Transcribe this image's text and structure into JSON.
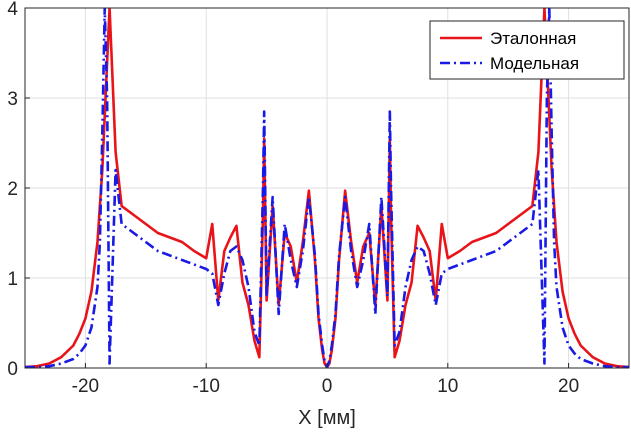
{
  "chart_data": {
    "type": "line",
    "title": "",
    "xlabel": "X [мм]",
    "ylabel": "",
    "xlim": [
      -25,
      25
    ],
    "ylim": [
      0,
      4
    ],
    "xticks": [
      -20,
      -10,
      0,
      10,
      20
    ],
    "xtick_labels": [
      "-20",
      "-10",
      "0",
      "10",
      "20"
    ],
    "yticks": [
      0,
      1,
      2,
      3,
      4
    ],
    "ytick_labels": [
      "0",
      "1",
      "2",
      "3",
      "4"
    ],
    "grid": true,
    "legend_position": "top-right",
    "series": [
      {
        "name": "Эталонная",
        "color": "#e8141a",
        "style": "solid",
        "x": [
          -25,
          -24,
          -23,
          -22,
          -21,
          -20.5,
          -20,
          -19.5,
          -19,
          -18.6,
          -18.2,
          -18,
          -17.5,
          -17,
          -16,
          -15,
          -14,
          -13,
          -12,
          -11,
          -10,
          -9.5,
          -9,
          -8.5,
          -8,
          -7.5,
          -7,
          -6.5,
          -6,
          -5.6,
          -5.3,
          -5.2,
          -5,
          -4.5,
          -4,
          -3.5,
          -3,
          -2.5,
          -2,
          -1.5,
          -1,
          -0.7,
          -0.4,
          -0.2,
          0,
          0.2,
          0.4,
          0.7,
          1,
          1.5,
          2,
          2.5,
          3,
          3.5,
          4,
          4.5,
          5,
          5.2,
          5.3,
          5.6,
          6,
          6.5,
          7,
          7.5,
          8,
          8.5,
          9,
          9.5,
          10,
          11,
          12,
          13,
          14,
          15,
          16,
          17,
          17.5,
          18,
          18.2,
          18.6,
          19,
          19.5,
          20,
          20.5,
          21,
          22,
          23,
          24,
          25
        ],
        "y": [
          0.01,
          0.02,
          0.05,
          0.12,
          0.25,
          0.38,
          0.55,
          0.85,
          1.4,
          2.2,
          3.4,
          4.0,
          2.4,
          1.8,
          1.7,
          1.6,
          1.5,
          1.45,
          1.4,
          1.3,
          1.22,
          1.6,
          0.75,
          1.3,
          1.45,
          1.58,
          0.95,
          0.7,
          0.3,
          0.12,
          1.7,
          2.55,
          0.75,
          1.8,
          0.7,
          1.5,
          1.35,
          0.95,
          1.4,
          1.97,
          1.2,
          0.55,
          0.2,
          0.05,
          0.01,
          0.05,
          0.2,
          0.55,
          1.2,
          1.97,
          1.4,
          0.95,
          1.35,
          1.5,
          0.7,
          1.8,
          0.75,
          2.55,
          1.7,
          0.12,
          0.3,
          0.7,
          0.95,
          1.58,
          1.45,
          1.3,
          0.75,
          1.6,
          1.22,
          1.3,
          1.4,
          1.45,
          1.5,
          1.6,
          1.7,
          1.8,
          2.4,
          4.0,
          3.4,
          2.2,
          1.4,
          0.85,
          0.55,
          0.38,
          0.25,
          0.12,
          0.05,
          0.02,
          0.01
        ]
      },
      {
        "name": "Модельная",
        "color": "#1a1ae6",
        "style": "dash-dot",
        "x": [
          -25,
          -24,
          -23,
          -22,
          -21,
          -20.5,
          -20,
          -19.5,
          -19,
          -18.8,
          -18.6,
          -18.4,
          -18.2,
          -18,
          -17.5,
          -17,
          -16,
          -15,
          -14,
          -13,
          -12,
          -11,
          -10,
          -9.5,
          -9,
          -8.5,
          -8,
          -7.5,
          -7,
          -6.5,
          -6,
          -5.6,
          -5.3,
          -5.2,
          -5,
          -4.5,
          -4,
          -3.5,
          -3,
          -2.5,
          -2,
          -1.5,
          -1,
          -0.7,
          -0.4,
          -0.2,
          0,
          0.2,
          0.4,
          0.7,
          1,
          1.5,
          2,
          2.5,
          3,
          3.5,
          4,
          4.5,
          5,
          5.2,
          5.3,
          5.6,
          6,
          6.5,
          7,
          7.5,
          8,
          8.5,
          9,
          9.5,
          10,
          11,
          12,
          13,
          14,
          15,
          16,
          17,
          17.5,
          18,
          18.2,
          18.4,
          18.6,
          18.8,
          19,
          19.5,
          20,
          20.5,
          21,
          22,
          23,
          24,
          25
        ],
        "y": [
          0.01,
          0.01,
          0.02,
          0.05,
          0.1,
          0.16,
          0.25,
          0.45,
          0.9,
          1.4,
          2.6,
          4.0,
          3.0,
          0.05,
          2.2,
          1.6,
          1.5,
          1.4,
          1.3,
          1.25,
          1.2,
          1.15,
          1.1,
          1.05,
          0.7,
          1.05,
          1.3,
          1.35,
          1.2,
          0.9,
          0.4,
          0.25,
          2.0,
          2.85,
          0.8,
          1.9,
          0.6,
          1.6,
          1.2,
          0.9,
          1.3,
          1.9,
          1.25,
          0.6,
          0.25,
          0.08,
          0.01,
          0.08,
          0.25,
          0.6,
          1.25,
          1.9,
          1.3,
          0.9,
          1.2,
          1.6,
          0.6,
          1.9,
          0.8,
          2.85,
          2.0,
          0.25,
          0.4,
          0.9,
          1.2,
          1.35,
          1.3,
          1.05,
          0.7,
          1.05,
          1.1,
          1.15,
          1.2,
          1.25,
          1.3,
          1.4,
          1.5,
          1.6,
          2.2,
          0.05,
          3.0,
          4.0,
          2.6,
          1.4,
          0.9,
          0.45,
          0.25,
          0.16,
          0.1,
          0.05,
          0.02,
          0.01,
          0.01
        ]
      }
    ]
  }
}
